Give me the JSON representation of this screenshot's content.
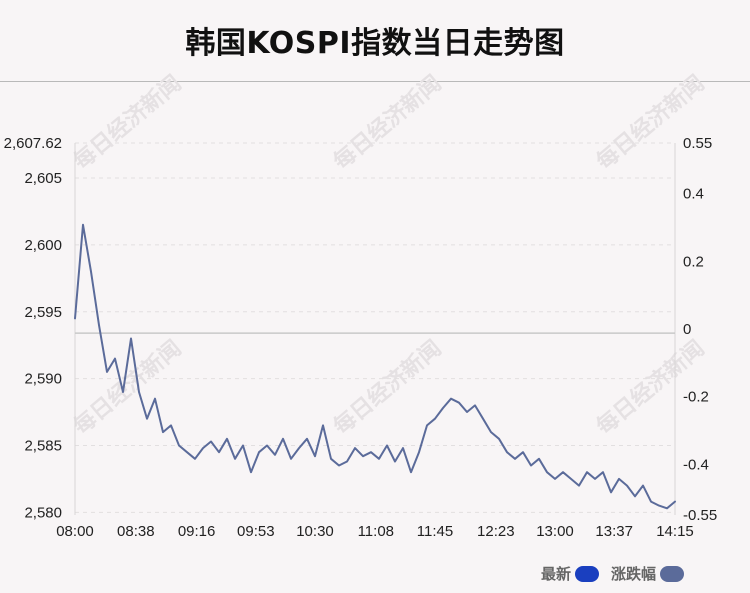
{
  "title": "韩国KOSPI指数当日走势图",
  "watermark": "每日经济新闻",
  "colors": {
    "line": "#5b6b9a",
    "legend_latest": "#1a3fbf",
    "legend_change": "#5b6b9a",
    "grid": "#e2dfe0",
    "baseline": "#c9c9c9"
  },
  "legend": [
    {
      "label": "最新",
      "color": "#1a3fbf"
    },
    {
      "label": "涨跌幅",
      "color": "#5b6b9a"
    }
  ],
  "chart_data": {
    "type": "line",
    "title": "韩国KOSPI指数当日走势图",
    "x_tick_labels": [
      "08:00",
      "08:38",
      "09:16",
      "09:53",
      "10:30",
      "11:08",
      "11:45",
      "12:23",
      "13:00",
      "13:37",
      "14:15"
    ],
    "y_left_tick_labels": [
      "2,607.62",
      "2,605",
      "2,600",
      "2,595",
      "2,590",
      "2,585",
      "2,580"
    ],
    "y_left_ticks": [
      2607.62,
      2605,
      2600,
      2595,
      2590,
      2585,
      2580
    ],
    "y_right_tick_labels": [
      "0.55",
      "0.4",
      "0.2",
      "0",
      "-0.2",
      "-0.4",
      "-0.55"
    ],
    "ylim_left": [
      2579.8,
      2607.62
    ],
    "ylim_right": [
      -0.55,
      0.55
    ],
    "reference_value": 2593.4,
    "grid": true,
    "grid_style": "dashed-horizontal",
    "legend_position": "bottom-right",
    "series": [
      {
        "name": "最新",
        "x": [
          "08:00",
          "08:05",
          "08:10",
          "08:15",
          "08:20",
          "08:25",
          "08:30",
          "08:35",
          "08:40",
          "08:45",
          "08:50",
          "08:55",
          "09:00",
          "09:05",
          "09:10",
          "09:15",
          "09:20",
          "09:25",
          "09:30",
          "09:35",
          "09:40",
          "09:45",
          "09:50",
          "09:55",
          "10:00",
          "10:05",
          "10:10",
          "10:15",
          "10:20",
          "10:25",
          "10:30",
          "10:35",
          "10:40",
          "10:45",
          "10:50",
          "10:55",
          "11:00",
          "11:05",
          "11:10",
          "11:15",
          "11:20",
          "11:25",
          "11:30",
          "11:35",
          "11:40",
          "11:45",
          "11:50",
          "11:55",
          "12:00",
          "12:05",
          "12:10",
          "12:15",
          "12:20",
          "12:25",
          "12:30",
          "12:35",
          "12:40",
          "12:45",
          "12:50",
          "12:55",
          "13:00",
          "13:05",
          "13:10",
          "13:15",
          "13:20",
          "13:25",
          "13:30",
          "13:35",
          "13:40",
          "13:45",
          "13:50",
          "13:55",
          "14:00",
          "14:05",
          "14:10",
          "14:15"
        ],
        "values": [
          2594.5,
          2601.5,
          2598.0,
          2594.0,
          2590.5,
          2591.5,
          2589.0,
          2593.0,
          2589.0,
          2587.0,
          2588.5,
          2586.0,
          2586.5,
          2585.0,
          2584.5,
          2584.0,
          2584.8,
          2585.3,
          2584.5,
          2585.5,
          2584.0,
          2585.0,
          2583.0,
          2584.5,
          2585.0,
          2584.3,
          2585.5,
          2584.0,
          2584.8,
          2585.5,
          2584.2,
          2586.5,
          2584.0,
          2583.5,
          2583.8,
          2584.8,
          2584.2,
          2584.5,
          2584.0,
          2585.0,
          2583.8,
          2584.8,
          2583.0,
          2584.5,
          2586.5,
          2587.0,
          2587.8,
          2588.5,
          2588.2,
          2587.5,
          2588.0,
          2587.0,
          2586.0,
          2585.5,
          2584.5,
          2584.0,
          2584.5,
          2583.5,
          2584.0,
          2583.0,
          2582.5,
          2583.0,
          2582.5,
          2582.0,
          2583.0,
          2582.5,
          2583.0,
          2581.5,
          2582.5,
          2582.0,
          2581.2,
          2582.0,
          2580.8,
          2580.5,
          2580.3,
          2580.8
        ]
      }
    ]
  }
}
